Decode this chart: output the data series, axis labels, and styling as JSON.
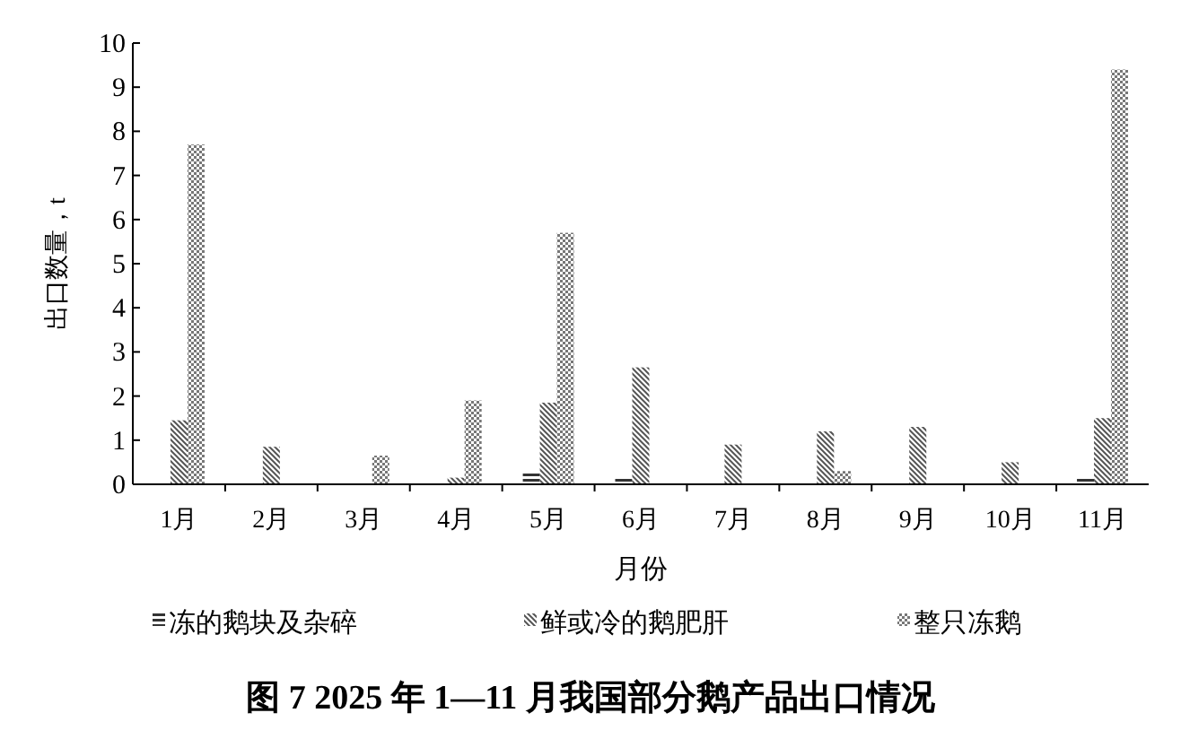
{
  "chart_data": {
    "type": "bar",
    "title": "图 7 2025 年 1—11 月我国部分鹅产品出口情况",
    "xlabel": "月份",
    "ylabel": "出口数量，t",
    "categories": [
      "1月",
      "2月",
      "3月",
      "4月",
      "5月",
      "6月",
      "7月",
      "8月",
      "9月",
      "10月",
      "11月"
    ],
    "series": [
      {
        "name": "冻的鹅块及杂碎",
        "color": "#333333",
        "values": [
          0,
          0,
          0,
          0,
          0.3,
          0.15,
          0,
          0,
          0,
          0,
          0.15
        ]
      },
      {
        "name": "鲜或冷的鹅肥肝",
        "color": "#555555",
        "values": [
          1.45,
          0.85,
          0,
          0.15,
          1.85,
          2.65,
          0.9,
          1.2,
          1.3,
          0.5,
          1.5
        ]
      },
      {
        "name": "整只冻鹅",
        "color": "#777777",
        "values": [
          7.7,
          0,
          0.65,
          1.9,
          5.7,
          0,
          0,
          0.3,
          0,
          0,
          9.4
        ]
      }
    ],
    "ylim": [
      0,
      10
    ],
    "yticks": [
      0,
      1,
      2,
      3,
      4,
      5,
      6,
      7,
      8,
      9,
      10
    ],
    "grid": false,
    "legend": "bottom"
  }
}
